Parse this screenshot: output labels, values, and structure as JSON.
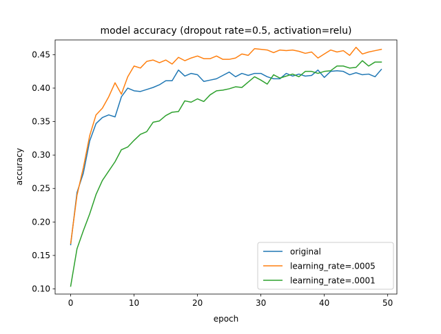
{
  "chart_data": {
    "type": "line",
    "title": "model accuracy (dropout rate=0.5, activation=relu)",
    "xlabel": "epoch",
    "ylabel": "accuracy",
    "xlim": [
      -2.45,
      51.45
    ],
    "ylim": [
      0.0923,
      0.472
    ],
    "xticks": [
      0,
      10,
      20,
      30,
      40,
      50
    ],
    "xtick_labels": [
      "0",
      "10",
      "20",
      "30",
      "40",
      "50"
    ],
    "yticks": [
      0.1,
      0.15,
      0.2,
      0.25,
      0.3,
      0.35,
      0.4,
      0.45
    ],
    "ytick_labels": [
      "0.10",
      "0.15",
      "0.20",
      "0.25",
      "0.30",
      "0.35",
      "0.40",
      "0.45"
    ],
    "grid": false,
    "legend_position": "lower-right",
    "x": [
      0,
      1,
      2,
      3,
      4,
      5,
      6,
      7,
      8,
      9,
      10,
      11,
      12,
      13,
      14,
      15,
      16,
      17,
      18,
      19,
      20,
      21,
      22,
      23,
      24,
      25,
      26,
      27,
      28,
      29,
      30,
      31,
      32,
      33,
      34,
      35,
      36,
      37,
      38,
      39,
      40,
      41,
      42,
      43,
      44,
      45,
      46,
      47,
      48,
      49
    ],
    "series": [
      {
        "name": "original",
        "color": "#1f77b4",
        "values": [
          0.166,
          0.244,
          0.273,
          0.321,
          0.347,
          0.356,
          0.36,
          0.357,
          0.387,
          0.4,
          0.396,
          0.395,
          0.398,
          0.401,
          0.405,
          0.411,
          0.411,
          0.427,
          0.418,
          0.422,
          0.42,
          0.41,
          0.412,
          0.414,
          0.419,
          0.424,
          0.417,
          0.422,
          0.419,
          0.422,
          0.422,
          0.417,
          0.414,
          0.414,
          0.422,
          0.418,
          0.421,
          0.418,
          0.419,
          0.427,
          0.416,
          0.425,
          0.426,
          0.425,
          0.42,
          0.423,
          0.42,
          0.421,
          0.417,
          0.428
        ]
      },
      {
        "name": "learning_rate=.0005",
        "color": "#ff7f0e",
        "values": [
          0.168,
          0.24,
          0.281,
          0.329,
          0.36,
          0.37,
          0.387,
          0.408,
          0.391,
          0.417,
          0.433,
          0.43,
          0.44,
          0.442,
          0.438,
          0.442,
          0.436,
          0.446,
          0.441,
          0.445,
          0.448,
          0.444,
          0.444,
          0.448,
          0.443,
          0.443,
          0.445,
          0.451,
          0.449,
          0.459,
          0.458,
          0.457,
          0.453,
          0.457,
          0.456,
          0.457,
          0.455,
          0.452,
          0.454,
          0.445,
          0.451,
          0.457,
          0.454,
          0.456,
          0.449,
          0.461,
          0.451,
          0.454,
          0.456,
          0.458
        ]
      },
      {
        "name": "learning_rate=.0001",
        "color": "#2ca02c",
        "values": [
          0.104,
          0.16,
          0.187,
          0.212,
          0.241,
          0.262,
          0.276,
          0.29,
          0.308,
          0.312,
          0.322,
          0.331,
          0.335,
          0.349,
          0.351,
          0.359,
          0.364,
          0.365,
          0.381,
          0.379,
          0.384,
          0.38,
          0.39,
          0.396,
          0.397,
          0.399,
          0.402,
          0.401,
          0.409,
          0.417,
          0.412,
          0.406,
          0.42,
          0.415,
          0.418,
          0.421,
          0.417,
          0.425,
          0.425,
          0.422,
          0.425,
          0.426,
          0.433,
          0.433,
          0.43,
          0.431,
          0.441,
          0.433,
          0.439,
          0.439
        ]
      }
    ]
  }
}
